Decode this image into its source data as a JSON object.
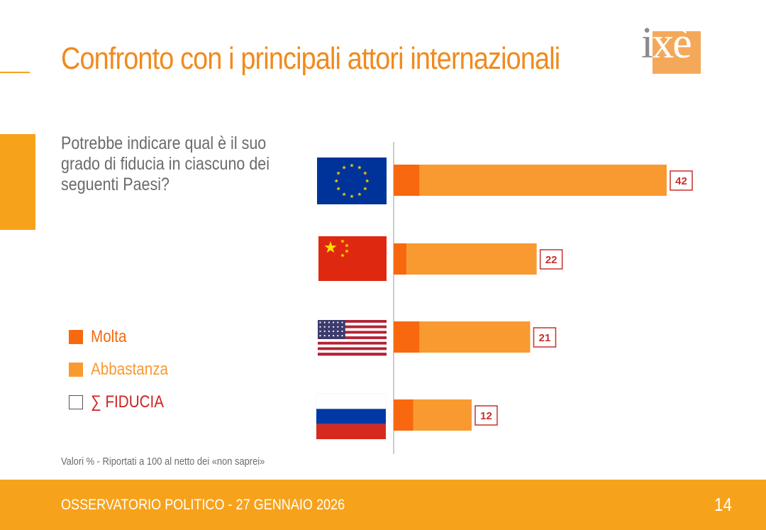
{
  "header": {
    "title": "Confronto con i principali attori internazionali",
    "logo_text": "ixè"
  },
  "question": "Potrebbe indicare qual è il suo grado di fiducia in ciascuno dei seguenti Paesi?",
  "legend": [
    {
      "label": "Molta",
      "color": "#f7680f",
      "style": "filled"
    },
    {
      "label": "Abbastanza",
      "color": "#f99a30",
      "style": "filled"
    },
    {
      "label": "∑ FIDUCIA",
      "color": "#cc2222",
      "style": "outline"
    }
  ],
  "note": "Valori % - Riportati a 100 al netto dei «non saprei»",
  "footer": {
    "text": "OSSERVATORIO POLITICO - 27 GENNAIO 2026",
    "page_number": "14"
  },
  "colors": {
    "accent": "#f7a21b",
    "title": "#f08a1e",
    "molta": "#f7680f",
    "abbastanza": "#f99a30",
    "fiducia_label": "#cc2222",
    "text_gray": "#6b6b6b"
  },
  "chart_data": {
    "type": "bar",
    "orientation": "horizontal",
    "stacked": true,
    "categories": [
      "EU-flag-icon",
      "china-flag-icon",
      "usa-flag-icon",
      "russia-flag-icon"
    ],
    "series": [
      {
        "name": "Molta",
        "values": [
          4,
          2,
          4,
          3
        ]
      },
      {
        "name": "Abbastanza",
        "values": [
          38,
          20,
          17,
          9
        ]
      }
    ],
    "totals": [
      42,
      22,
      21,
      12
    ],
    "xlim": [
      0,
      45
    ],
    "grid": false,
    "legend_position": "left"
  }
}
